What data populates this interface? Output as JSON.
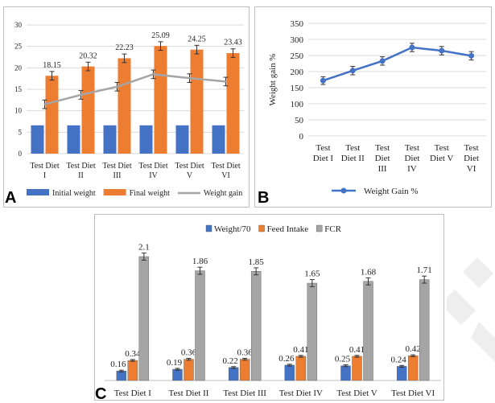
{
  "panel_labels": {
    "a": "A",
    "b": "B",
    "c": "C"
  },
  "colors": {
    "blue": "#4472c4",
    "orange": "#ed7d31",
    "gray": "#a5a5a5",
    "gridline": "#d9d9d9",
    "watermark": "#eeeeee"
  },
  "chart_data": [
    {
      "id": "A",
      "type": "bar",
      "categories": [
        [
          "Test Diet",
          "I"
        ],
        [
          "Test Diet",
          "II"
        ],
        [
          "Test Diet",
          "III"
        ],
        [
          "Test Diet",
          "IV"
        ],
        [
          "Test Diet",
          "V"
        ],
        [
          "Test Diet",
          "VI"
        ]
      ],
      "ylim": [
        0,
        30
      ],
      "yticks": [
        0,
        5,
        10,
        15,
        20,
        25,
        30
      ],
      "grid": true,
      "legend_position": "bottom",
      "series": [
        {
          "name": "Initial weight",
          "kind": "bar",
          "color": "#4472c4",
          "values": [
            6.6,
            6.6,
            6.6,
            6.6,
            6.6,
            6.6
          ],
          "errors": [
            0,
            0,
            0,
            0,
            0,
            0
          ]
        },
        {
          "name": "Final weight",
          "kind": "bar",
          "color": "#ed7d31",
          "values": [
            18.15,
            20.32,
            22.23,
            25.09,
            24.25,
            23.43
          ],
          "labels": [
            "18.15",
            "20.32",
            "22.23",
            "25.09",
            "24.25",
            "23.43"
          ],
          "errors": [
            1.0,
            1.0,
            1.0,
            1.0,
            1.0,
            1.0
          ]
        },
        {
          "name": "Weight gain",
          "kind": "line",
          "color": "#a5a5a5",
          "values": [
            11.5,
            13.7,
            15.6,
            18.5,
            17.6,
            16.8
          ],
          "errors": [
            1.0,
            1.0,
            1.0,
            1.0,
            1.0,
            1.0
          ]
        }
      ]
    },
    {
      "id": "B",
      "type": "line",
      "ylabel": "Weight gain %",
      "categories": [
        [
          "Test",
          "Diet I"
        ],
        [
          "Test",
          "Diet II"
        ],
        [
          "Test",
          "Diet",
          "III"
        ],
        [
          "Test",
          "Diet",
          "IV"
        ],
        [
          "Test",
          "Diet V"
        ],
        [
          "Test",
          "Diet",
          "VI"
        ]
      ],
      "ylim": [
        0,
        350
      ],
      "yticks": [
        0,
        50,
        100,
        150,
        200,
        250,
        300,
        350
      ],
      "grid": true,
      "legend_position": "bottom",
      "series": [
        {
          "name": "Weight Gain %",
          "color": "#4472c4",
          "values": [
            172,
            203,
            233,
            275,
            265,
            249
          ],
          "errors": [
            12,
            13,
            13,
            13,
            13,
            13
          ]
        }
      ]
    },
    {
      "id": "C",
      "type": "bar",
      "categories": [
        "Test Diet I",
        "Test Diet II",
        "Test Diet III",
        "Test Diet IV",
        "Test Diet V",
        "Test Diet VI"
      ],
      "ylim": [
        0,
        2.4
      ],
      "grid": false,
      "legend_position": "top",
      "series": [
        {
          "name": "Weight/70",
          "color": "#4472c4",
          "values": [
            0.16,
            0.19,
            0.22,
            0.26,
            0.25,
            0.24
          ],
          "labels": [
            "0.16",
            "0.19",
            "0.22",
            "0.26",
            "0.25",
            "0.24"
          ]
        },
        {
          "name": "Feed Intake",
          "color": "#ed7d31",
          "values": [
            0.34,
            0.36,
            0.36,
            0.41,
            0.41,
            0.42
          ],
          "labels": [
            "0.34",
            "0.36",
            "0.36",
            "0.41",
            "0.41",
            "0.42"
          ]
        },
        {
          "name": "FCR",
          "color": "#a5a5a5",
          "values": [
            2.1,
            1.86,
            1.85,
            1.65,
            1.68,
            1.71
          ],
          "labels": [
            "2.1",
            "1.86",
            "1.85",
            "1.65",
            "1.68",
            "1.71"
          ]
        }
      ]
    }
  ]
}
